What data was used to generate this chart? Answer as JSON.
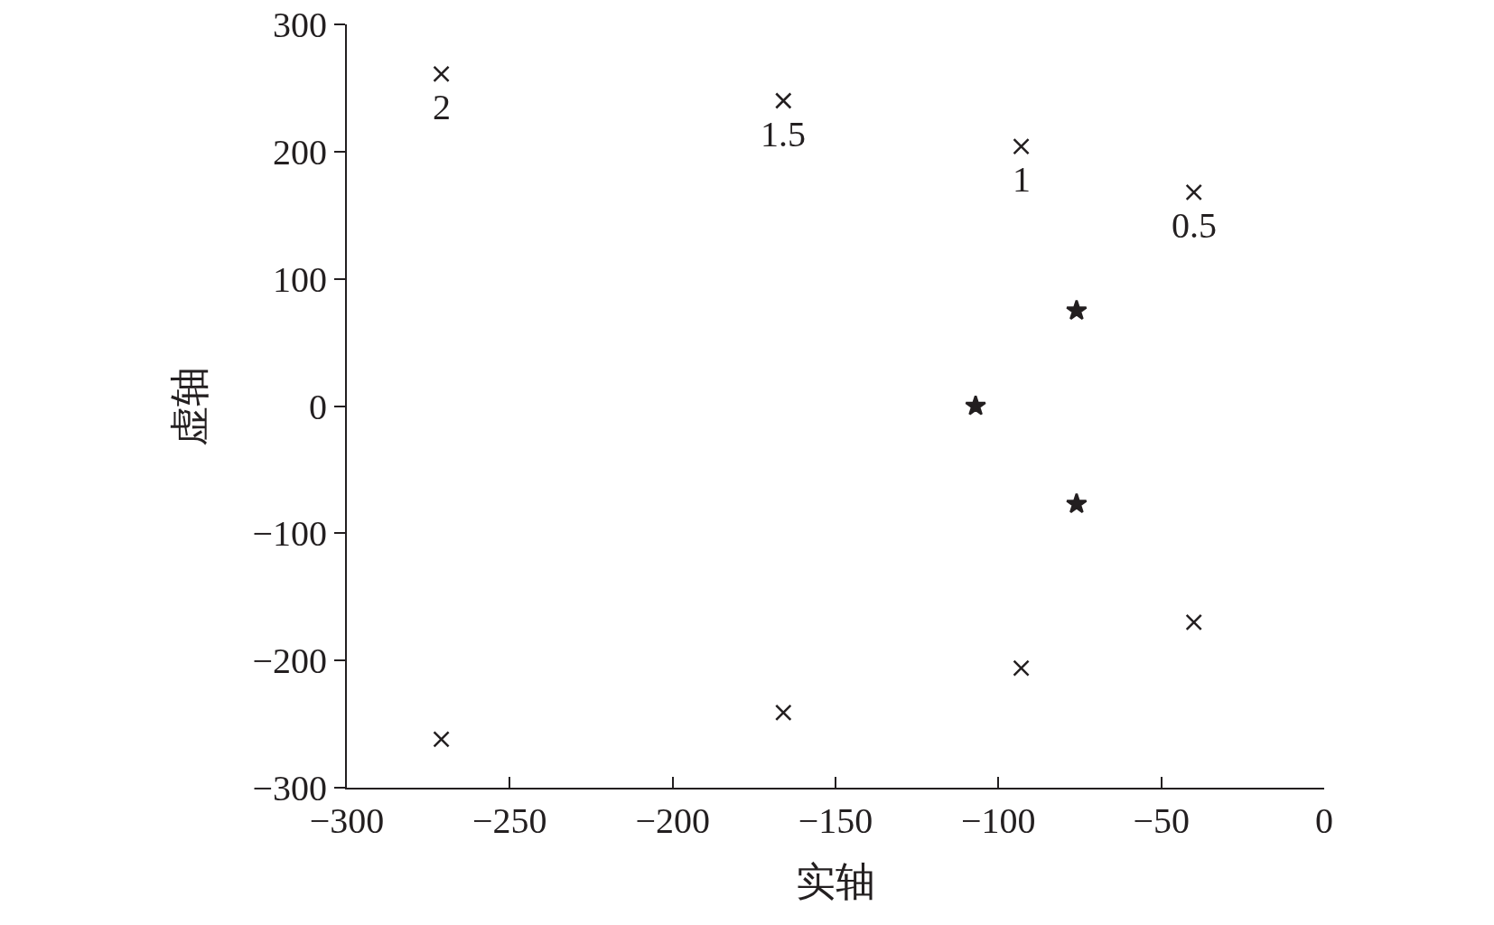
{
  "chart_data": {
    "type": "scatter",
    "xlabel": "实轴",
    "ylabel": "虚轴",
    "xlim": [
      -300,
      0
    ],
    "ylim": [
      -300,
      300
    ],
    "xticks": [
      {
        "value": -300,
        "label": "−300"
      },
      {
        "value": -250,
        "label": "−250"
      },
      {
        "value": -200,
        "label": "−200"
      },
      {
        "value": -150,
        "label": "−150"
      },
      {
        "value": -100,
        "label": "−100"
      },
      {
        "value": -50,
        "label": "−50"
      },
      0
    ],
    "yticks": [
      {
        "value": -300,
        "label": "−300"
      },
      {
        "value": -200,
        "label": "−200"
      },
      {
        "value": -100,
        "label": "−100"
      },
      0,
      100,
      200,
      300
    ],
    "grid": false,
    "series": [
      {
        "color": "#231f20",
        "marker": "cross",
        "x": [
          -271,
          -271,
          -166,
          -166,
          -93,
          -93,
          -40,
          -40
        ],
        "values": [
          261,
          -262,
          240,
          -241,
          204,
          -206,
          168,
          -170
        ]
      },
      {
        "color": "#231f20",
        "marker": "star",
        "x": [
          -76,
          -76,
          -107
        ],
        "values": [
          75,
          -77,
          0
        ]
      }
    ],
    "annotations": [
      {
        "text": "2",
        "x": -271,
        "y": 261
      },
      {
        "text": "1.5",
        "x": -166,
        "y": 240
      },
      {
        "text": "1",
        "x": -93,
        "y": 204
      },
      {
        "text": "0.5",
        "x": -40,
        "y": 168
      }
    ]
  }
}
